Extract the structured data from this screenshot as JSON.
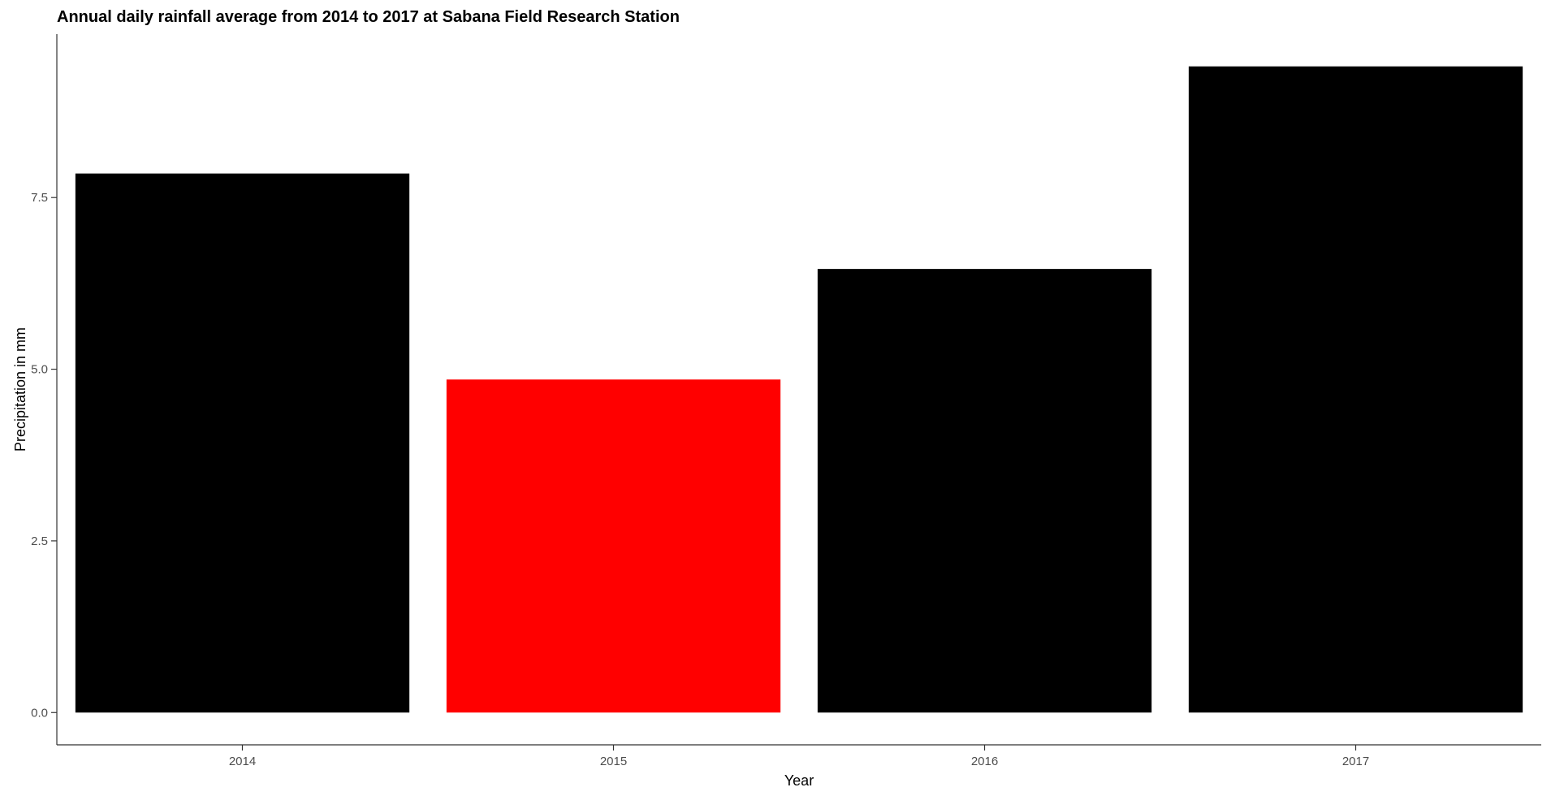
{
  "chart_data": {
    "type": "bar",
    "title": "Annual daily rainfall average from 2014 to 2017 at Sabana Field Research Station",
    "xlabel": "Year",
    "ylabel": "Precipitation in mm",
    "categories": [
      "2014",
      "2015",
      "2016",
      "2017"
    ],
    "values": [
      7.85,
      4.85,
      6.46,
      9.41
    ],
    "bar_colors": [
      "#000000",
      "#ff0000",
      "#000000",
      "#000000"
    ],
    "yticks": [
      0.0,
      2.5,
      5.0,
      7.5
    ],
    "ytick_labels": [
      "0.0",
      "2.5",
      "5.0",
      "7.5"
    ],
    "ylim": [
      -0.47,
      9.88
    ],
    "grid": false,
    "legend": "none"
  }
}
